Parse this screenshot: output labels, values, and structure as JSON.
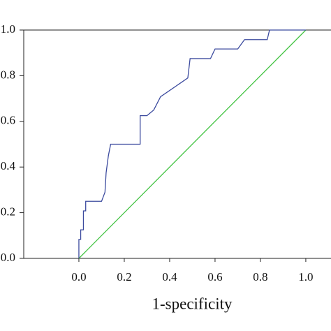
{
  "chart_data": {
    "type": "line",
    "x_label": "1-specificity",
    "series": [
      {
        "color": "#3b4a9e",
        "x": [
          0,
          0,
          0.008,
          0.008,
          0.02,
          0.02,
          0.03,
          0.03,
          0.1,
          0.115,
          0.12,
          0.13,
          0.14,
          0.27,
          0.27,
          0.3,
          0.33,
          0.36,
          0.48,
          0.49,
          0.58,
          0.6,
          0.7,
          0.73,
          0.83,
          0.84,
          1
        ],
        "values": [
          0,
          0.083,
          0.083,
          0.125,
          0.125,
          0.208,
          0.208,
          0.25,
          0.25,
          0.29,
          0.375,
          0.45,
          0.5,
          0.5,
          0.625,
          0.625,
          0.65,
          0.708,
          0.79,
          0.875,
          0.875,
          0.917,
          0.917,
          0.958,
          0.958,
          1,
          1
        ]
      },
      {
        "color": "#44c444",
        "x": [
          0,
          1
        ],
        "values": [
          0,
          1
        ]
      }
    ],
    "xlim": [
      -0.243,
      1.111
    ],
    "ylim": [
      0,
      1
    ],
    "xticks": [
      {
        "value": 0,
        "label": "0.0"
      },
      0.2,
      0.4,
      0.6,
      0.8,
      {
        "value": 1,
        "label": "1.0"
      }
    ],
    "yticks": [
      {
        "value": 0,
        "label": "0.0"
      },
      0.2,
      0.4,
      0.6,
      0.8,
      {
        "value": 1,
        "label": "1.0"
      }
    ]
  }
}
